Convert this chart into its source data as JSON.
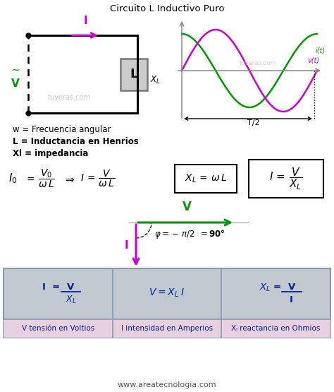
{
  "title": "Circuito L Inductivo Puro",
  "background_color": "#ffffff",
  "magenta": "#cc00cc",
  "green": "#009900",
  "watermark": "tuveras.com",
  "website": "www.areatecnologia.com",
  "def1": "w = Frecuencia angular",
  "def2": "L = Inductancia en Henrios",
  "def3": "Xl = impedancia",
  "table_bg": "#c0c8d0",
  "table_label_bg": "#e8d0e0",
  "table_col1_label": "V tensión en Voltios",
  "table_col2_label": "I intensidad en Amperios",
  "table_col3_label": "Xₗ reactancia en Ohmios"
}
